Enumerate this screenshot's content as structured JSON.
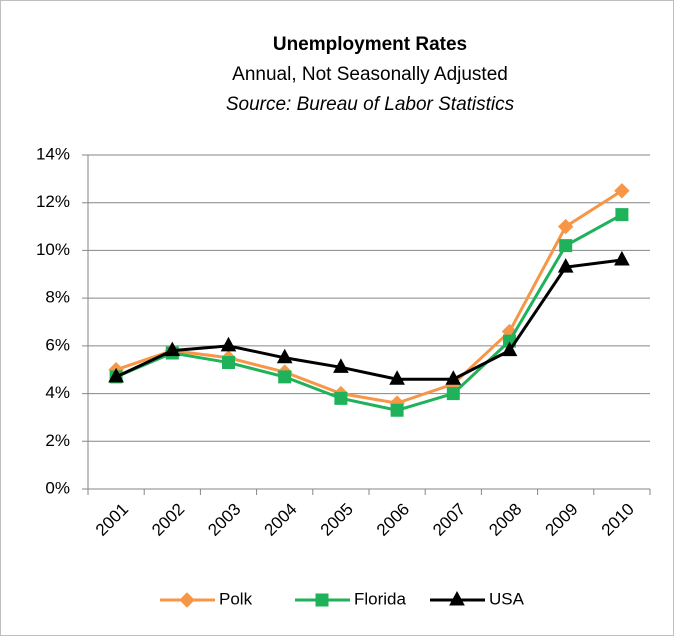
{
  "chart_data": {
    "type": "line",
    "title": "Unemployment Rates",
    "subtitle": "Annual, Not Seasonally Adjusted",
    "source": "Source: Bureau of Labor Statistics",
    "categories": [
      "2001",
      "2002",
      "2003",
      "2004",
      "2005",
      "2006",
      "2007",
      "2008",
      "2009",
      "2010"
    ],
    "series": [
      {
        "name": "Polk",
        "color": "#f79646",
        "marker": "diamond",
        "values": [
          5.0,
          5.8,
          5.5,
          4.9,
          4.0,
          3.6,
          4.4,
          6.6,
          11.0,
          12.5
        ]
      },
      {
        "name": "Florida",
        "color": "#1fb25a",
        "marker": "square",
        "values": [
          4.7,
          5.7,
          5.3,
          4.7,
          3.8,
          3.3,
          4.0,
          6.2,
          10.2,
          11.5
        ]
      },
      {
        "name": "USA",
        "color": "#000000",
        "marker": "triangle",
        "values": [
          4.7,
          5.8,
          6.0,
          5.5,
          5.1,
          4.6,
          4.6,
          5.8,
          9.3,
          9.6
        ]
      }
    ],
    "ylim": [
      0,
      14
    ],
    "yticks": [
      {
        "value": 0,
        "label": "0%"
      },
      {
        "value": 2,
        "label": "2%"
      },
      {
        "value": 4,
        "label": "4%"
      },
      {
        "value": 6,
        "label": "6%"
      },
      {
        "value": 8,
        "label": "8%"
      },
      {
        "value": 10,
        "label": "10%"
      },
      {
        "value": 12,
        "label": "12%"
      },
      {
        "value": 14,
        "label": "14%"
      }
    ],
    "grid": true,
    "legend": "bottom"
  }
}
